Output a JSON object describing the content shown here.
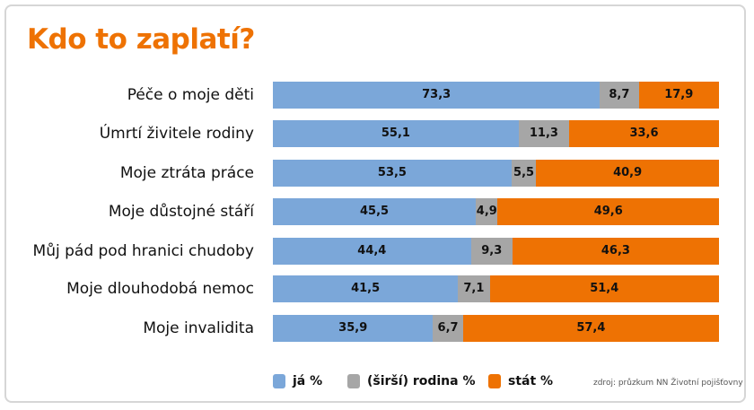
{
  "chart_data": {
    "type": "bar",
    "stacked": true,
    "orientation": "horizontal",
    "title": "Kdo to zaplatí?",
    "categories": [
      "Péče o moje děti",
      "Úmrtí živitele rodiny",
      "Moje ztráta práce",
      "Moje důstojné stáří",
      "Můj pád pod hranici chudoby",
      "Moje dlouhodobá nemoc",
      "Moje invalidita"
    ],
    "series": [
      {
        "name": "já %",
        "color": "#7ba7d9",
        "values": [
          73.3,
          55.1,
          53.5,
          45.5,
          44.4,
          41.5,
          35.9
        ],
        "labels": [
          "73,3",
          "55,1",
          "53,5",
          "45,5",
          "44,4",
          "41,5",
          "35,9"
        ]
      },
      {
        "name": "(širší) rodina %",
        "color": "#a6a6a6",
        "values": [
          8.7,
          11.3,
          5.5,
          4.9,
          9.3,
          7.1,
          6.7
        ],
        "labels": [
          "8,7",
          "11,3",
          "5,5",
          "4,9",
          "9,3",
          "7,1",
          "6,7"
        ]
      },
      {
        "name": "stát %",
        "color": "#ee7203",
        "values": [
          17.9,
          33.6,
          40.9,
          49.6,
          46.3,
          51.4,
          57.4
        ],
        "labels": [
          "17,9",
          "33,6",
          "40,9",
          "49,6",
          "46,3",
          "51,4",
          "57,4"
        ]
      }
    ],
    "xlim": [
      0,
      100
    ],
    "grid": false,
    "legend_position": "bottom",
    "source": "zdroj: průzkum NN Životní pojišťovny"
  }
}
